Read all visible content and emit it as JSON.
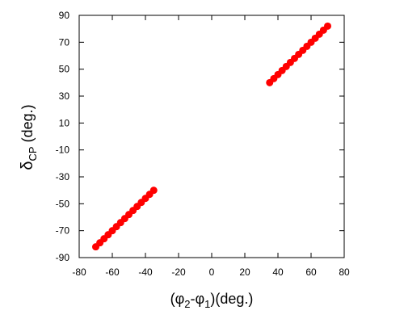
{
  "chart_data": {
    "type": "scatter",
    "xlabel_parts": [
      "(φ",
      "2",
      "-φ",
      "1",
      ")(deg.)"
    ],
    "ylabel_parts": [
      "δ",
      "CP",
      " (deg.)"
    ],
    "xlim": [
      -80,
      80
    ],
    "xticks": [
      -80,
      -60,
      -40,
      -20,
      0,
      20,
      40,
      60,
      80
    ],
    "ylim": [
      -90,
      90
    ],
    "yticks": [
      -90,
      -70,
      -50,
      -30,
      -10,
      10,
      30,
      50,
      70,
      90
    ],
    "series": [
      {
        "color": "#ff0000",
        "x": [
          35,
          37.5,
          40,
          42.5,
          45,
          47.5,
          50,
          52.5,
          55,
          57.5,
          60,
          62.5,
          65,
          67.5,
          70
        ],
        "values": [
          40,
          43,
          46,
          49,
          52,
          55,
          58,
          61,
          64,
          67,
          70,
          73,
          76,
          79,
          82
        ]
      },
      {
        "color": "#ff0000",
        "x": [
          -35,
          -37.5,
          -40,
          -42.5,
          -45,
          -47.5,
          -50,
          -52.5,
          -55,
          -57.5,
          -60,
          -62.5,
          -65,
          -67.5,
          -70
        ],
        "values": [
          -40,
          -43,
          -46,
          -49,
          -52,
          -55,
          -58,
          -61,
          -64,
          -67,
          -70,
          -73,
          -76,
          -79,
          -82
        ]
      }
    ]
  }
}
